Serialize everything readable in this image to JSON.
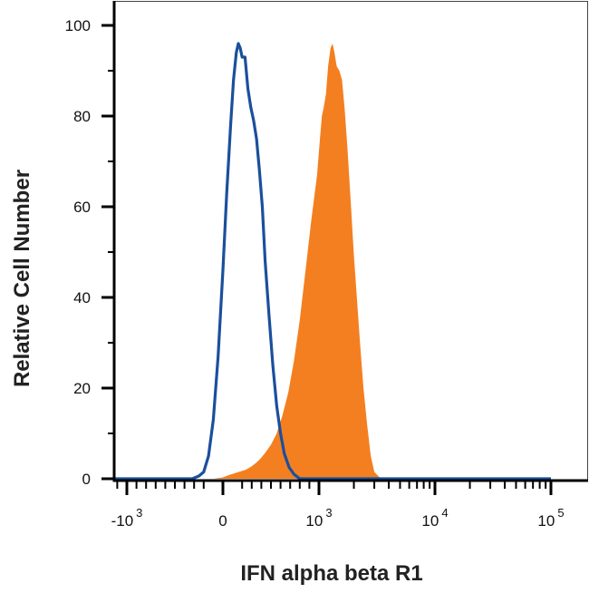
{
  "chart_data": {
    "type": "area",
    "title": "",
    "xlabel": "IFN alpha beta R1",
    "ylabel": "Relative Cell Number",
    "x_scale": "biexponential",
    "x_ticks": [
      {
        "base": "-10",
        "exp": "3",
        "value": -1000
      },
      {
        "base": "0",
        "exp": "",
        "value": 0
      },
      {
        "base": "10",
        "exp": "3",
        "value": 1000
      },
      {
        "base": "10",
        "exp": "4",
        "value": 10000
      },
      {
        "base": "10",
        "exp": "5",
        "value": 100000
      }
    ],
    "y_ticks": [
      "100",
      "80",
      "60",
      "40",
      "20",
      "0"
    ],
    "ylim": [
      0,
      100
    ],
    "grid": false,
    "series": [
      {
        "style": "filled",
        "color": "#f47f20",
        "points": [
          [
            -300,
            0
          ],
          [
            -100,
            0
          ],
          [
            0,
            0.3
          ],
          [
            60,
            0.8
          ],
          [
            120,
            1.2
          ],
          [
            180,
            1.6
          ],
          [
            240,
            2.0
          ],
          [
            290,
            2.6
          ],
          [
            340,
            3.4
          ],
          [
            390,
            4.4
          ],
          [
            440,
            5.7
          ],
          [
            500,
            7.5
          ],
          [
            560,
            10
          ],
          [
            620,
            14
          ],
          [
            680,
            19
          ],
          [
            740,
            26
          ],
          [
            800,
            35
          ],
          [
            860,
            46
          ],
          [
            920,
            57
          ],
          [
            980,
            67
          ],
          [
            1020,
            75
          ],
          [
            1060,
            80
          ],
          [
            1100,
            82
          ],
          [
            1150,
            85
          ],
          [
            1200,
            91
          ],
          [
            1260,
            95
          ],
          [
            1310,
            96
          ],
          [
            1360,
            94
          ],
          [
            1420,
            91
          ],
          [
            1500,
            90
          ],
          [
            1580,
            88
          ],
          [
            1660,
            82
          ],
          [
            1760,
            73
          ],
          [
            1870,
            62
          ],
          [
            1990,
            50
          ],
          [
            2120,
            40
          ],
          [
            2260,
            30
          ],
          [
            2420,
            20
          ],
          [
            2600,
            12
          ],
          [
            2800,
            5
          ],
          [
            3000,
            1.5
          ],
          [
            3300,
            0.4
          ],
          [
            3700,
            0
          ],
          [
            100000,
            0
          ]
        ]
      },
      {
        "style": "outline",
        "color": "#1b4f9c",
        "points": [
          [
            -1500,
            0
          ],
          [
            -320,
            0
          ],
          [
            -250,
            0.6
          ],
          [
            -200,
            1.5
          ],
          [
            -150,
            5
          ],
          [
            -100,
            13
          ],
          [
            -50,
            27
          ],
          [
            0,
            46
          ],
          [
            40,
            63
          ],
          [
            80,
            78
          ],
          [
            110,
            88
          ],
          [
            140,
            94
          ],
          [
            160,
            96
          ],
          [
            180,
            95
          ],
          [
            200,
            93
          ],
          [
            230,
            93
          ],
          [
            260,
            86
          ],
          [
            290,
            82
          ],
          [
            320,
            79
          ],
          [
            350,
            75
          ],
          [
            380,
            68
          ],
          [
            410,
            60
          ],
          [
            440,
            48
          ],
          [
            480,
            36
          ],
          [
            520,
            25
          ],
          [
            560,
            16
          ],
          [
            600,
            10
          ],
          [
            640,
            5.5
          ],
          [
            690,
            2.5
          ],
          [
            740,
            1
          ],
          [
            800,
            0
          ],
          [
            100000,
            0
          ]
        ]
      }
    ]
  }
}
